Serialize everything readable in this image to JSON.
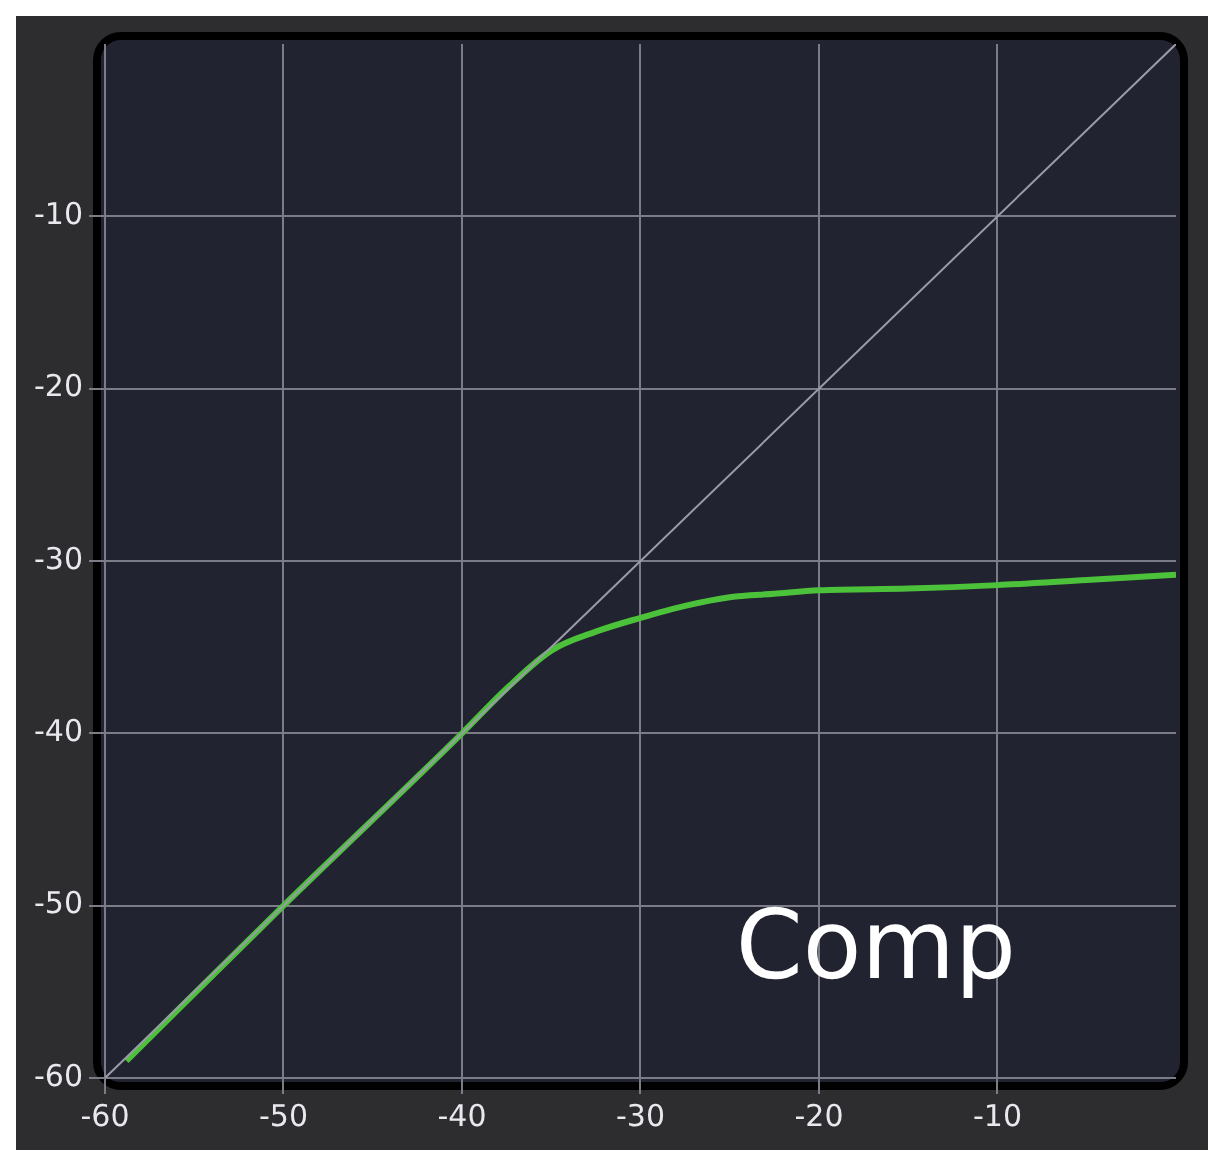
{
  "chart_data": {
    "type": "line",
    "xlim": [
      -60,
      0
    ],
    "ylim": [
      -60,
      0
    ],
    "xticks": [
      -60,
      -50,
      -40,
      -30,
      -20,
      -10
    ],
    "yticks": [
      -60,
      -50,
      -40,
      -30,
      -20,
      -10
    ],
    "grid": true,
    "marker": "none",
    "legend": false,
    "annotations": [
      "Comp"
    ],
    "series": [
      {
        "color": "#9a9aaa",
        "x": [
          -60,
          0
        ],
        "values": [
          -60,
          0
        ]
      },
      {
        "color": "#4cc13a",
        "x": [
          -58.8,
          -50,
          -40,
          -37.5,
          -35,
          -32.5,
          -30,
          -27.5,
          -25,
          -22.5,
          -20,
          -15,
          -10,
          -5,
          0
        ],
        "values": [
          -59,
          -50,
          -40,
          -37.4,
          -35.2,
          -34.1,
          -33.3,
          -32.6,
          -32.1,
          -31.9,
          -31.7,
          -31.6,
          -31.4,
          -31.1,
          -30.8
        ]
      }
    ]
  }
}
